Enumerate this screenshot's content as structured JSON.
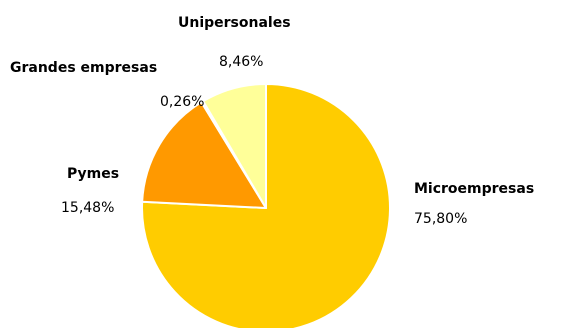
{
  "chart_data": {
    "type": "pie",
    "title": "",
    "slices": [
      {
        "label": "Microempresas",
        "value": 75.8,
        "display": "75,80%",
        "color": "#FFCC00"
      },
      {
        "label": "Pymes",
        "value": 15.48,
        "display": "15,48%",
        "color": "#FF9900"
      },
      {
        "label": "Grandes empresas",
        "value": 0.26,
        "display": "0,26%",
        "color": "#FFCC00"
      },
      {
        "label": "Unipersonales",
        "value": 8.46,
        "display": "8,46%",
        "color": "#FFFF99"
      }
    ],
    "start_angle_deg": 0,
    "direction": "clockwise",
    "legend": "none",
    "grid": false
  }
}
